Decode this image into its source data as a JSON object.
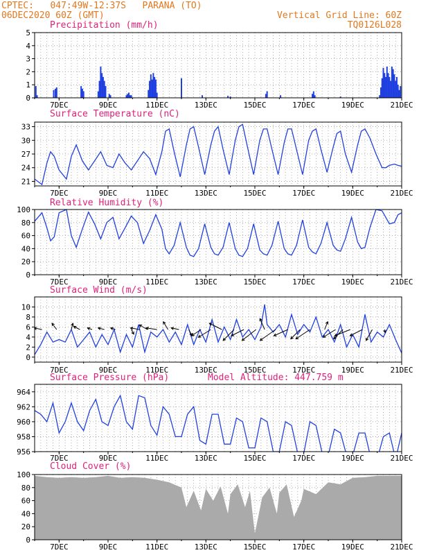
{
  "header": {
    "line1": "CPTEC:   047:49W-12:37S   PARANA (TO)",
    "line2": "06DEC2020 60Z (GMT)",
    "grid_note": "Vertical Grid Line: 60Z",
    "code": "TQ0126L028"
  },
  "colors": {
    "header": "#e07820",
    "title": "#e0207a",
    "series": "#1f3fe0",
    "bar": "#1f3fe0",
    "cloud": "#aaaaaa",
    "arrow": "#000000",
    "grid": "#999999"
  },
  "x_ticks": [
    "7DEC",
    "9DEC",
    "11DEC",
    "13DEC",
    "15DEC",
    "17DEC",
    "19DEC",
    "21DEC"
  ],
  "chart_data": [
    {
      "type": "bar",
      "title": "Precipitation (mm/h)",
      "x_start": "06DEC2020",
      "x_range_days": [
        0,
        15
      ],
      "ylim": [
        0,
        5
      ],
      "yticks": [
        0,
        1,
        2,
        3,
        4,
        5
      ],
      "x_days": [
        0.05,
        0.1,
        0.78,
        0.85,
        0.9,
        1.9,
        1.95,
        2.0,
        2.6,
        2.65,
        2.7,
        2.75,
        2.8,
        2.85,
        2.9,
        3.05,
        3.1,
        3.75,
        3.8,
        3.85,
        3.9,
        3.95,
        4.65,
        4.7,
        4.75,
        4.8,
        4.85,
        4.9,
        4.95,
        5.0,
        6.0,
        6.85,
        7.9,
        8.0,
        9.45,
        9.5,
        10.05,
        11.35,
        11.4,
        11.45,
        12.5,
        14.1,
        14.15,
        14.2,
        14.25,
        14.3,
        14.35,
        14.4,
        14.45,
        14.5,
        14.55,
        14.6,
        14.65,
        14.7,
        14.75,
        14.8,
        14.85,
        14.9,
        14.95
      ],
      "values": [
        0.9,
        0.2,
        0.6,
        0.7,
        0.8,
        0.9,
        0.7,
        0.5,
        0.5,
        1.3,
        2.4,
        1.9,
        1.6,
        1.3,
        0.9,
        0.3,
        0.2,
        0.2,
        0.3,
        0.4,
        0.2,
        0.2,
        0.6,
        1.3,
        1.8,
        1.4,
        1.9,
        1.6,
        1.4,
        0.4,
        1.5,
        0.2,
        0.15,
        0.1,
        0.3,
        0.5,
        0.2,
        0.3,
        0.5,
        0.2,
        0.1,
        0.2,
        0.8,
        1.5,
        2.3,
        1.9,
        1.6,
        2.4,
        1.9,
        1.6,
        1.3,
        2.4,
        2.2,
        1.8,
        1.3,
        1.6,
        1.0,
        0.6,
        0.9
      ]
    },
    {
      "type": "line",
      "title": "Surface Temperature (nC)",
      "x_range_days": [
        0,
        15
      ],
      "ylim": [
        20,
        34
      ],
      "yticks": [
        21,
        24,
        27,
        30,
        33
      ],
      "series": [
        {
          "x_days": [
            0,
            0.3,
            0.5,
            0.65,
            0.8,
            1.0,
            1.3,
            1.5,
            1.7,
            1.95,
            2.2,
            2.45,
            2.7,
            2.95,
            3.2,
            3.45,
            3.7,
            3.95,
            4.2,
            4.45,
            4.7,
            4.95,
            5.2,
            5.35,
            5.5,
            5.7,
            5.95,
            6.2,
            6.35,
            6.5,
            6.7,
            6.95,
            7.2,
            7.35,
            7.5,
            7.7,
            7.95,
            8.2,
            8.35,
            8.5,
            8.7,
            8.95,
            9.2,
            9.35,
            9.5,
            9.7,
            9.95,
            10.2,
            10.35,
            10.5,
            10.7,
            10.95,
            11.2,
            11.35,
            11.5,
            11.7,
            11.95,
            12.2,
            12.35,
            12.5,
            12.7,
            12.95,
            13.2,
            13.35,
            13.5,
            13.7,
            13.95,
            14.2,
            14.35,
            14.5,
            14.7,
            14.85,
            15.0
          ],
          "values": [
            21.5,
            20.3,
            25.0,
            27.5,
            26.5,
            23.5,
            21.5,
            26.5,
            29.0,
            25.5,
            23.5,
            25.5,
            27.5,
            24.5,
            24.0,
            27.0,
            25.0,
            23.5,
            25.5,
            27.5,
            26.0,
            22.5,
            27.5,
            32.0,
            32.5,
            27.5,
            22.0,
            29.0,
            32.5,
            33.0,
            28.5,
            22.5,
            29.0,
            32.0,
            33.0,
            28.0,
            22.5,
            30.0,
            33.0,
            33.5,
            28.5,
            22.5,
            30.0,
            32.5,
            32.5,
            28.0,
            22.5,
            29.5,
            32.5,
            32.5,
            28.0,
            22.5,
            30.0,
            32.0,
            32.5,
            28.0,
            23.0,
            28.5,
            31.5,
            32.0,
            27.0,
            23.0,
            29.0,
            32.0,
            32.5,
            30.5,
            27.0,
            24.0,
            24.0,
            24.5,
            24.8,
            24.5,
            24.3
          ]
        }
      ]
    },
    {
      "type": "line",
      "title": "Relative Humidity (%)",
      "x_range_days": [
        0,
        15
      ],
      "ylim": [
        0,
        100
      ],
      "yticks": [
        0,
        20,
        40,
        60,
        80,
        100
      ],
      "series": [
        {
          "x_days": [
            0,
            0.3,
            0.5,
            0.65,
            0.8,
            1.0,
            1.3,
            1.5,
            1.7,
            1.95,
            2.2,
            2.45,
            2.7,
            2.95,
            3.2,
            3.45,
            3.7,
            3.95,
            4.2,
            4.45,
            4.7,
            4.95,
            5.2,
            5.35,
            5.5,
            5.7,
            5.95,
            6.2,
            6.35,
            6.5,
            6.7,
            6.95,
            7.2,
            7.35,
            7.5,
            7.7,
            7.95,
            8.2,
            8.35,
            8.5,
            8.7,
            8.95,
            9.2,
            9.35,
            9.5,
            9.7,
            9.95,
            10.2,
            10.35,
            10.5,
            10.7,
            10.95,
            11.2,
            11.35,
            11.5,
            11.7,
            11.95,
            12.2,
            12.35,
            12.5,
            12.7,
            12.95,
            13.2,
            13.35,
            13.5,
            13.7,
            13.95,
            14.2,
            14.35,
            14.5,
            14.7,
            14.85,
            15.0
          ],
          "values": [
            82,
            95,
            72,
            52,
            58,
            95,
            100,
            60,
            42,
            70,
            96,
            78,
            55,
            80,
            88,
            55,
            72,
            90,
            80,
            48,
            68,
            92,
            70,
            40,
            32,
            45,
            80,
            42,
            30,
            28,
            40,
            78,
            42,
            32,
            30,
            42,
            80,
            40,
            30,
            28,
            40,
            78,
            38,
            32,
            30,
            45,
            82,
            40,
            32,
            30,
            45,
            84,
            42,
            35,
            32,
            48,
            80,
            45,
            38,
            36,
            55,
            88,
            50,
            40,
            42,
            72,
            100,
            98,
            88,
            78,
            80,
            92,
            95
          ]
        }
      ]
    },
    {
      "type": "line",
      "title": "Surface Wind (m/s)",
      "x_range_days": [
        0,
        15
      ],
      "ylim": [
        -1,
        12
      ],
      "yticks": [
        0,
        2,
        4,
        6,
        8,
        10
      ],
      "series": [
        {
          "x_days": [
            0,
            0.25,
            0.5,
            0.75,
            1.0,
            1.25,
            1.5,
            1.75,
            2.0,
            2.25,
            2.5,
            2.75,
            3.0,
            3.25,
            3.5,
            3.75,
            4.0,
            4.25,
            4.5,
            4.75,
            5.0,
            5.25,
            5.5,
            5.75,
            6.0,
            6.25,
            6.5,
            6.75,
            7.0,
            7.25,
            7.5,
            7.75,
            8.0,
            8.25,
            8.5,
            8.75,
            9.0,
            9.25,
            9.4,
            9.5,
            9.75,
            10.0,
            10.25,
            10.5,
            10.75,
            11.0,
            11.25,
            11.5,
            11.75,
            12.0,
            12.25,
            12.5,
            12.75,
            13.0,
            13.25,
            13.5,
            13.75,
            14.0,
            14.25,
            14.5,
            14.75,
            15.0
          ],
          "values": [
            0.5,
            2.5,
            5.0,
            3.0,
            3.5,
            3.0,
            5.5,
            2.0,
            3.5,
            5.0,
            2.0,
            4.5,
            2.5,
            5.5,
            1.0,
            4.5,
            2.0,
            6.5,
            1.0,
            5.0,
            4.0,
            5.5,
            3.0,
            5.0,
            2.5,
            6.5,
            2.5,
            5.5,
            3.0,
            7.5,
            3.0,
            6.0,
            3.5,
            7.5,
            4.0,
            5.5,
            3.5,
            6.0,
            10.5,
            6.5,
            5.0,
            6.5,
            4.0,
            8.5,
            4.5,
            6.5,
            5.0,
            8.0,
            4.0,
            5.5,
            3.0,
            6.5,
            2.0,
            4.5,
            2.0,
            8.5,
            3.0,
            5.0,
            4.0,
            6.5,
            3.5,
            0.8
          ]
        }
      ],
      "arrows": {
        "x_days": [
          0.3,
          0.9,
          1.5,
          1.85,
          2.35,
          2.85,
          3.3,
          3.95,
          4.3,
          4.6,
          5.0,
          5.45,
          5.9,
          6.3,
          6.8,
          7.2,
          7.65,
          8.15,
          8.55,
          9.05,
          9.4,
          9.85,
          10.35,
          10.85,
          11.25,
          11.85,
          12.3,
          12.6,
          12.9,
          13.4,
          13.8,
          14.3
        ],
        "u": [
          -2.5,
          -1.5,
          0.5,
          -2.0,
          -1.5,
          -2.0,
          -1.5,
          0.8,
          -3.0,
          -2.5,
          -3.5,
          -1.5,
          -2.5,
          1.0,
          -3.0,
          -4.0,
          -4.0,
          -3.5,
          -4.0,
          -4.5,
          -1.5,
          -5.0,
          -4.5,
          -3.0,
          -4.5,
          1.0,
          -4.0,
          -3.0,
          -5.0,
          -4.0,
          -2.0,
          0.2
        ],
        "v": [
          0.5,
          2.0,
          2.0,
          1.0,
          0.5,
          0.5,
          0.5,
          -1.5,
          0.5,
          1.5,
          0.5,
          2.5,
          0.5,
          -2.0,
          -2.0,
          -2.5,
          2.0,
          -3.5,
          -2.0,
          -3.5,
          3.5,
          -3.5,
          -2.0,
          -3.0,
          -3.0,
          2.5,
          -2.5,
          -3.0,
          -2.0,
          -2.0,
          -3.5,
          -1.0
        ]
      }
    },
    {
      "type": "line",
      "title": "Surface Pressure (hPa)",
      "annotation": "Model Altitude: 447.759 m",
      "x_range_days": [
        0,
        15
      ],
      "ylim": [
        956,
        965
      ],
      "yticks": [
        956,
        958,
        960,
        962,
        964
      ],
      "series": [
        {
          "x_days": [
            0,
            0.25,
            0.5,
            0.75,
            1.0,
            1.25,
            1.5,
            1.75,
            2.0,
            2.25,
            2.5,
            2.75,
            3.0,
            3.25,
            3.5,
            3.75,
            4.0,
            4.25,
            4.5,
            4.75,
            5.0,
            5.25,
            5.5,
            5.75,
            6.0,
            6.25,
            6.5,
            6.75,
            7.0,
            7.25,
            7.5,
            7.75,
            8.0,
            8.25,
            8.5,
            8.75,
            9.0,
            9.25,
            9.5,
            9.75,
            10.0,
            10.25,
            10.5,
            10.75,
            11.0,
            11.25,
            11.5,
            11.75,
            12.0,
            12.25,
            12.5,
            12.75,
            13.0,
            13.25,
            13.5,
            13.75,
            14.0,
            14.25,
            14.5,
            14.75,
            15.0
          ],
          "values": [
            961.5,
            961.0,
            960.0,
            962.5,
            958.5,
            960.0,
            962.5,
            960.0,
            958.8,
            961.5,
            963.0,
            960.0,
            959.5,
            962.0,
            963.5,
            960.0,
            959.0,
            963.5,
            963.2,
            959.5,
            958.2,
            962.0,
            961.0,
            958.0,
            958.0,
            961.0,
            962.0,
            957.5,
            957.0,
            961.0,
            961.0,
            957.0,
            957.0,
            960.5,
            960.0,
            956.5,
            956.5,
            960.5,
            960.0,
            956.0,
            956.0,
            960.0,
            959.5,
            955.8,
            955.8,
            960.0,
            959.5,
            955.8,
            955.5,
            959.0,
            958.5,
            955.5,
            955.5,
            958.5,
            958.5,
            955.0,
            955.0,
            958.0,
            958.5,
            955.0,
            958.5
          ]
        }
      ]
    },
    {
      "type": "area",
      "title": "Cloud Cover (%)",
      "x_range_days": [
        0,
        15
      ],
      "ylim": [
        0,
        100
      ],
      "yticks": [
        0,
        20,
        40,
        60,
        80,
        100
      ],
      "series": [
        {
          "x_days": [
            0,
            0.5,
            1.0,
            1.5,
            2.0,
            2.5,
            3.0,
            3.5,
            4.0,
            4.5,
            5.0,
            5.5,
            6.0,
            6.2,
            6.5,
            6.8,
            7.0,
            7.3,
            7.6,
            7.9,
            8.0,
            8.3,
            8.6,
            8.8,
            9.0,
            9.3,
            9.6,
            9.9,
            10.0,
            10.3,
            10.6,
            10.9,
            11.0,
            11.5,
            12.0,
            12.5,
            13.0,
            13.5,
            14.0,
            14.5,
            15.0
          ],
          "values": [
            98,
            96,
            95,
            96,
            95,
            96,
            98,
            95,
            96,
            95,
            92,
            88,
            80,
            50,
            75,
            45,
            78,
            60,
            82,
            40,
            70,
            85,
            50,
            75,
            10,
            65,
            80,
            40,
            72,
            85,
            35,
            60,
            78,
            70,
            88,
            85,
            95,
            96,
            98,
            98,
            98
          ]
        }
      ]
    }
  ]
}
